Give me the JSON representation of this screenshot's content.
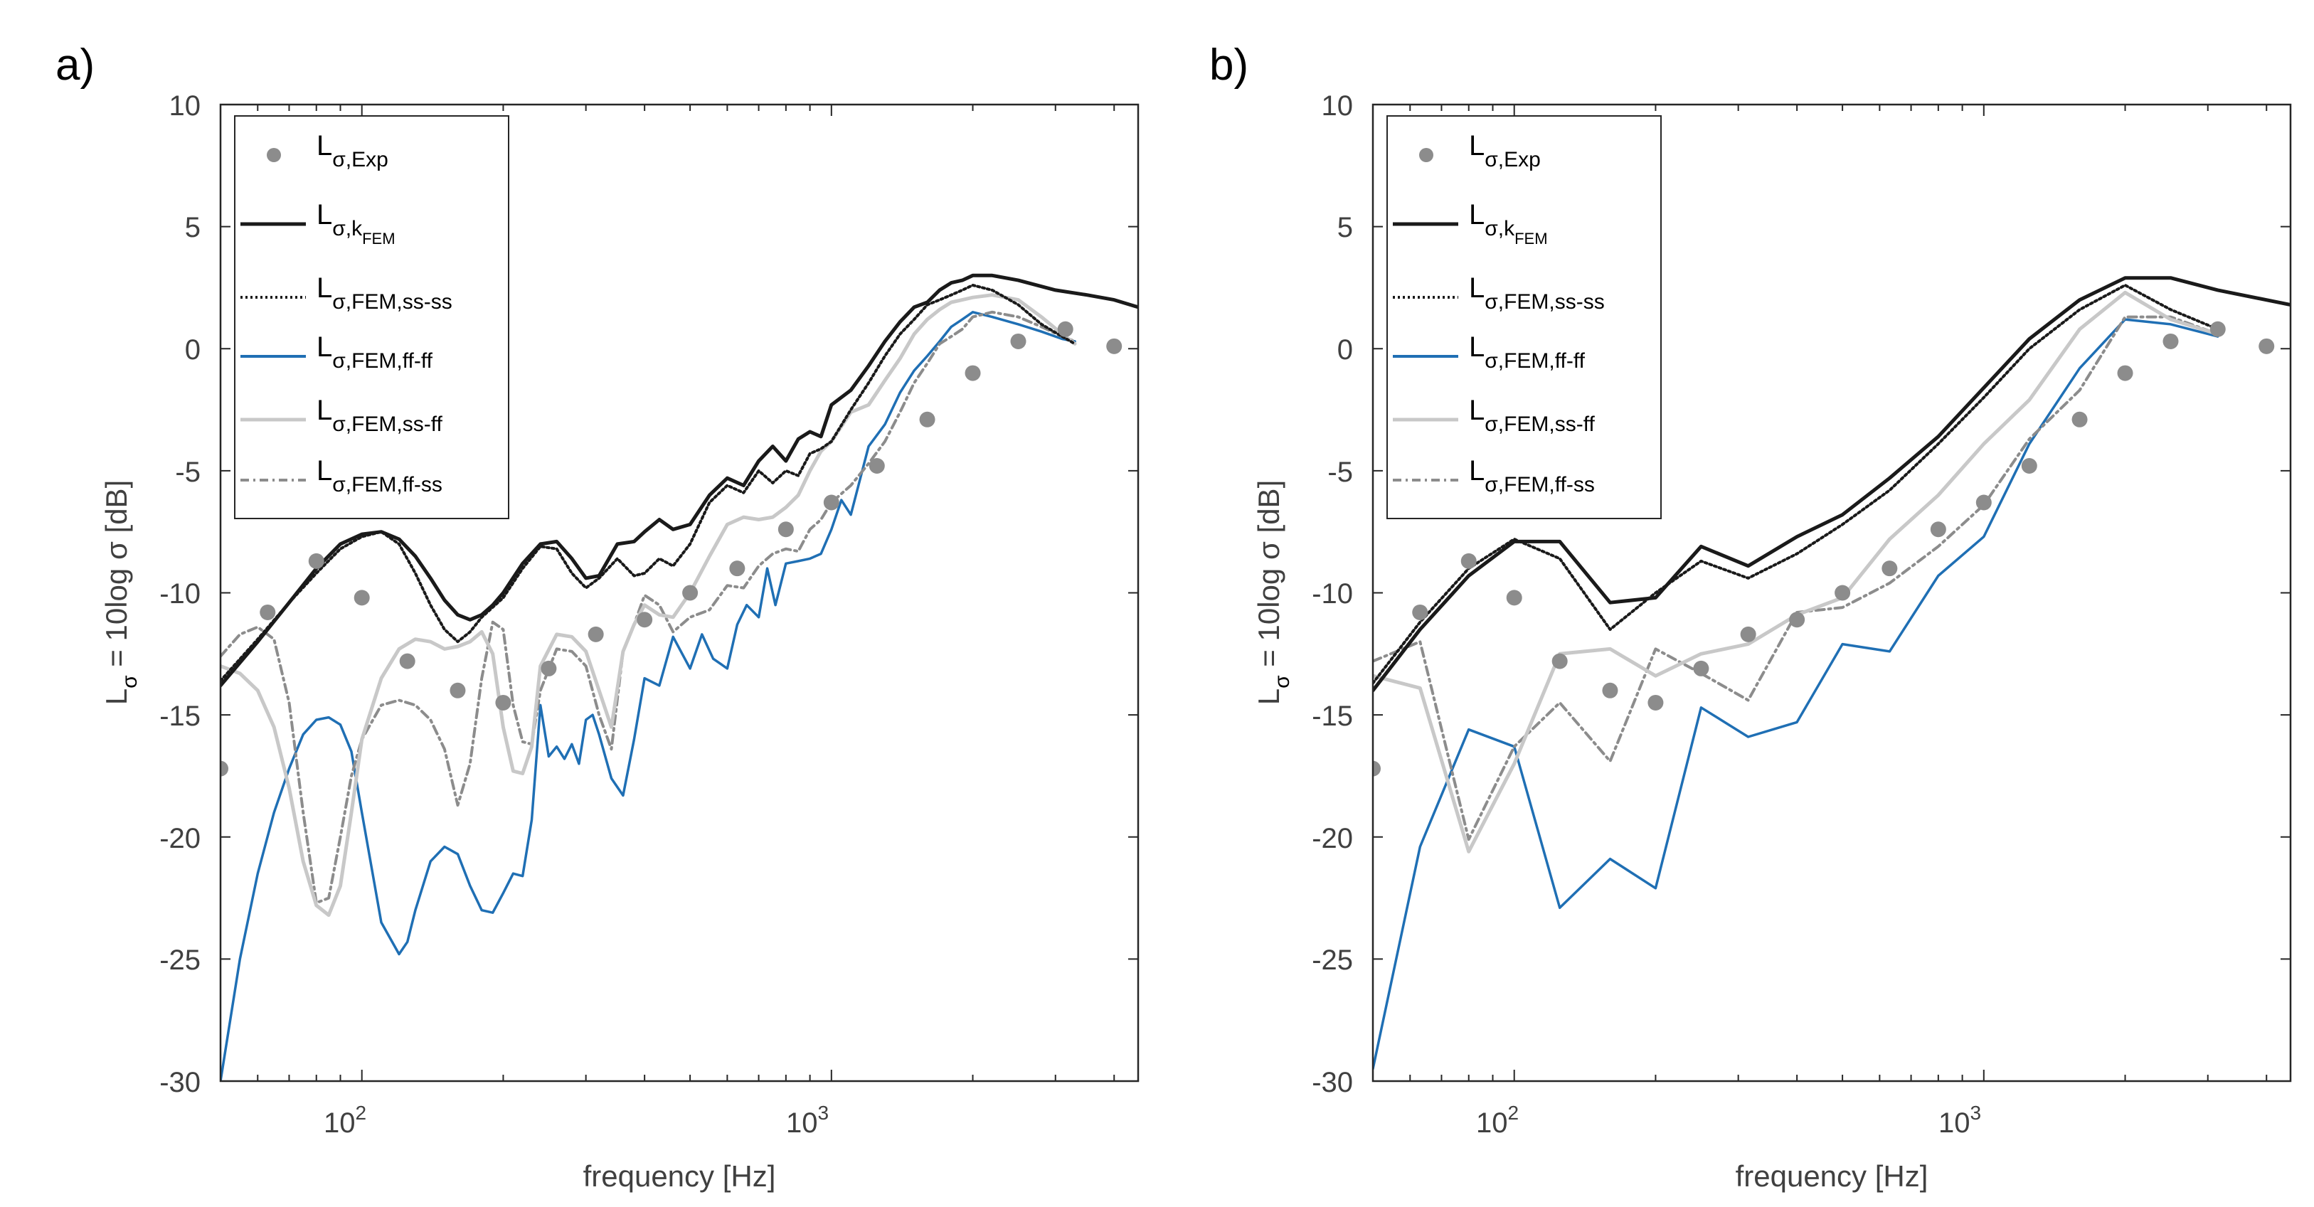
{
  "panels": [
    {
      "label": "a)",
      "xlabel": "frequency [Hz]",
      "ylabel": {
        "main": "L",
        "sub": "σ",
        "rest": " = 10log σ [dB]"
      },
      "xlim": [
        50,
        4500
      ],
      "ylim": [
        -30,
        10
      ],
      "xscale": "log",
      "xticks": [
        {
          "base": "10",
          "exp": "2"
        },
        {
          "base": "10",
          "exp": "3"
        }
      ],
      "yticks": [
        "10",
        "5",
        "0",
        "-5",
        "-10",
        "-15",
        "-20",
        "-25",
        "-30"
      ],
      "legend": [
        {
          "main": "L",
          "sub": "σ,Exp",
          "subsub": ""
        },
        {
          "main": "L",
          "sub": "σ,k",
          "subsub": "FEM"
        },
        {
          "main": "L",
          "sub": "σ,FEM,ss-ss",
          "subsub": ""
        },
        {
          "main": "L",
          "sub": "σ,FEM,ff-ff",
          "subsub": ""
        },
        {
          "main": "L",
          "sub": "σ,FEM,ss-ff",
          "subsub": ""
        },
        {
          "main": "L",
          "sub": "σ,FEM,ff-ss",
          "subsub": ""
        }
      ]
    },
    {
      "label": "b)",
      "xlabel": "frequency [Hz]",
      "ylabel": {
        "main": "L",
        "sub": "σ",
        "rest": " = 10log σ [dB]"
      },
      "xlim": [
        50,
        4500
      ],
      "ylim": [
        -30,
        10
      ],
      "xscale": "log",
      "xticks": [
        {
          "base": "10",
          "exp": "2"
        },
        {
          "base": "10",
          "exp": "3"
        }
      ],
      "yticks": [
        "10",
        "5",
        "0",
        "-5",
        "-10",
        "-15",
        "-20",
        "-25",
        "-30"
      ],
      "legend": [
        {
          "main": "L",
          "sub": "σ,Exp",
          "subsub": ""
        },
        {
          "main": "L",
          "sub": "σ,k",
          "subsub": "FEM"
        },
        {
          "main": "L",
          "sub": "σ,FEM,ss-ss",
          "subsub": ""
        },
        {
          "main": "L",
          "sub": "σ,FEM,ff-ff",
          "subsub": ""
        },
        {
          "main": "L",
          "sub": "σ,FEM,ss-ff",
          "subsub": ""
        },
        {
          "main": "L",
          "sub": "σ,FEM,ff-ss",
          "subsub": ""
        }
      ]
    }
  ],
  "colors": {
    "exp": "#8c8c8c",
    "k_fem": "#1a1a1a",
    "ss_ss": "#1a1a1a",
    "ff_ff": "#1f6fb4",
    "ss_ff": "#c8c8c8",
    "ff_ss": "#8c8c8c"
  },
  "chart_data": [
    {
      "type": "line",
      "series": [
        {
          "key": "exp",
          "style": "markers",
          "x": [
            50,
            63,
            80,
            100,
            125,
            160,
            200,
            250,
            315,
            400,
            500,
            630,
            800,
            1000,
            1250,
            1600,
            2000,
            2500,
            3150,
            4000,
            5000
          ],
          "y": [
            -17.2,
            -10.8,
            -8.7,
            -10.2,
            -12.8,
            -14.0,
            -14.5,
            -13.1,
            -11.7,
            -11.1,
            -10.0,
            -9.0,
            -7.4,
            -6.3,
            -4.8,
            -2.9,
            -1.0,
            0.3,
            0.8,
            0.1,
            0.3
          ]
        },
        {
          "key": "k_fem",
          "style": "solid",
          "x": [
            50,
            60,
            70,
            80,
            90,
            100,
            110,
            120,
            130,
            140,
            150,
            160,
            170,
            180,
            190,
            200,
            220,
            240,
            260,
            280,
            300,
            320,
            350,
            380,
            400,
            430,
            460,
            500,
            550,
            600,
            650,
            700,
            750,
            800,
            850,
            900,
            950,
            1000,
            1100,
            1200,
            1300,
            1400,
            1500,
            1600,
            1700,
            1800,
            1900,
            2000,
            2200,
            2500,
            3000,
            3500,
            4000,
            4500
          ],
          "y": [
            -13.8,
            -12.0,
            -10.4,
            -9.0,
            -8.0,
            -7.6,
            -7.5,
            -7.8,
            -8.5,
            -9.4,
            -10.3,
            -10.9,
            -11.1,
            -10.9,
            -10.5,
            -10.0,
            -8.8,
            -8.0,
            -7.9,
            -8.6,
            -9.4,
            -9.3,
            -8.0,
            -7.9,
            -7.5,
            -7.0,
            -7.4,
            -7.2,
            -6.0,
            -5.3,
            -5.6,
            -4.6,
            -4.0,
            -4.6,
            -3.7,
            -3.4,
            -3.6,
            -2.3,
            -1.7,
            -0.7,
            0.3,
            1.1,
            1.7,
            1.9,
            2.4,
            2.7,
            2.8,
            3.0,
            3.0,
            2.8,
            2.4,
            2.2,
            2.0,
            1.7
          ]
        },
        {
          "key": "ss_ss",
          "style": "dotted",
          "x": [
            50,
            60,
            70,
            80,
            90,
            100,
            110,
            120,
            130,
            140,
            150,
            160,
            170,
            180,
            200,
            220,
            240,
            260,
            280,
            300,
            320,
            350,
            380,
            400,
            430,
            460,
            500,
            550,
            600,
            650,
            700,
            750,
            800,
            850,
            900,
            950,
            1000,
            1100,
            1200,
            1300,
            1400,
            1500,
            1600,
            1700,
            1800,
            1900,
            2000,
            2200,
            2500,
            2800,
            3100,
            3300
          ],
          "y": [
            -13.6,
            -11.9,
            -10.4,
            -9.2,
            -8.2,
            -7.7,
            -7.5,
            -8.0,
            -9.2,
            -10.5,
            -11.5,
            -12.0,
            -11.6,
            -11.0,
            -10.2,
            -9.0,
            -8.1,
            -8.2,
            -9.2,
            -9.8,
            -9.4,
            -8.6,
            -9.3,
            -9.2,
            -8.6,
            -8.9,
            -8.0,
            -6.3,
            -5.6,
            -5.9,
            -5.0,
            -5.5,
            -5.0,
            -5.2,
            -4.3,
            -4.1,
            -3.8,
            -2.5,
            -1.4,
            -0.3,
            0.6,
            1.2,
            1.8,
            2.0,
            2.2,
            2.4,
            2.6,
            2.4,
            1.8,
            1.0,
            0.5,
            0.2
          ]
        },
        {
          "key": "ff_ff",
          "style": "solid",
          "x": [
            50,
            55,
            60,
            65,
            70,
            75,
            80,
            85,
            90,
            95,
            100,
            110,
            120,
            125,
            130,
            140,
            150,
            160,
            170,
            180,
            190,
            200,
            210,
            220,
            230,
            240,
            250,
            260,
            270,
            280,
            290,
            300,
            310,
            320,
            340,
            360,
            380,
            400,
            430,
            460,
            500,
            530,
            560,
            600,
            630,
            660,
            700,
            730,
            760,
            800,
            850,
            900,
            950,
            1000,
            1050,
            1100,
            1200,
            1300,
            1400,
            1500,
            1600,
            1700,
            1800,
            1900,
            2000,
            2200,
            2500,
            2800,
            3100,
            3300
          ],
          "y": [
            -30.0,
            -25.0,
            -21.5,
            -19.0,
            -17.2,
            -15.8,
            -15.2,
            -15.1,
            -15.4,
            -16.5,
            -19.0,
            -23.5,
            -24.8,
            -24.3,
            -23.0,
            -21.0,
            -20.4,
            -20.7,
            -22.0,
            -23.0,
            -23.1,
            -22.3,
            -21.5,
            -21.6,
            -19.3,
            -14.6,
            -16.7,
            -16.3,
            -16.8,
            -16.2,
            -17.0,
            -15.2,
            -15.0,
            -15.8,
            -17.6,
            -18.3,
            -16.0,
            -13.5,
            -13.8,
            -11.8,
            -13.1,
            -11.7,
            -12.7,
            -13.1,
            -11.3,
            -10.5,
            -11.0,
            -9.0,
            -10.5,
            -8.8,
            -8.7,
            -8.6,
            -8.4,
            -7.4,
            -6.2,
            -6.8,
            -4.0,
            -3.1,
            -1.8,
            -0.9,
            -0.3,
            0.3,
            0.9,
            1.2,
            1.5,
            1.3,
            1.0,
            0.7,
            0.4,
            0.3
          ]
        },
        {
          "key": "ss_ff",
          "style": "solid",
          "x": [
            50,
            55,
            60,
            65,
            70,
            75,
            80,
            85,
            90,
            95,
            100,
            110,
            120,
            130,
            140,
            150,
            160,
            170,
            180,
            190,
            200,
            210,
            220,
            230,
            240,
            260,
            280,
            300,
            320,
            340,
            360,
            380,
            400,
            430,
            460,
            500,
            550,
            600,
            650,
            700,
            750,
            800,
            850,
            900,
            950,
            1000,
            1100,
            1200,
            1300,
            1400,
            1500,
            1600,
            1700,
            1800,
            1900,
            2000,
            2200,
            2500,
            2800,
            3100,
            3300
          ],
          "y": [
            -13.0,
            -13.3,
            -14.0,
            -15.5,
            -18.0,
            -21.0,
            -22.8,
            -23.2,
            -22.0,
            -19.0,
            -16.0,
            -13.5,
            -12.3,
            -11.9,
            -12.0,
            -12.3,
            -12.2,
            -12.0,
            -11.6,
            -12.5,
            -15.5,
            -17.3,
            -17.4,
            -16.3,
            -13.0,
            -11.7,
            -11.8,
            -12.4,
            -14.0,
            -15.5,
            -12.4,
            -11.3,
            -10.5,
            -10.9,
            -11.0,
            -10.0,
            -8.5,
            -7.2,
            -6.9,
            -7.0,
            -6.9,
            -6.5,
            -6.0,
            -5.0,
            -4.2,
            -3.8,
            -2.6,
            -2.3,
            -1.3,
            -0.4,
            0.6,
            1.2,
            1.6,
            1.9,
            2.0,
            2.1,
            2.2,
            2.0,
            1.3,
            0.6,
            0.2
          ]
        },
        {
          "key": "ff_ss",
          "style": "dashdot",
          "x": [
            50,
            55,
            60,
            65,
            70,
            75,
            80,
            85,
            90,
            95,
            100,
            110,
            120,
            130,
            140,
            150,
            160,
            170,
            180,
            190,
            200,
            210,
            220,
            230,
            240,
            260,
            280,
            300,
            320,
            340,
            360,
            380,
            400,
            430,
            460,
            500,
            550,
            600,
            650,
            700,
            750,
            800,
            850,
            900,
            950,
            1000,
            1100,
            1200,
            1300,
            1400,
            1500,
            1600,
            1700,
            1800,
            1900,
            2000,
            2200,
            2500,
            2800,
            3100,
            3300
          ],
          "y": [
            -12.6,
            -11.7,
            -11.4,
            -11.9,
            -14.5,
            -19.0,
            -22.7,
            -22.5,
            -20.0,
            -17.5,
            -16.0,
            -14.6,
            -14.4,
            -14.6,
            -15.2,
            -16.4,
            -18.7,
            -17.0,
            -13.5,
            -11.2,
            -11.5,
            -14.6,
            -16.1,
            -16.2,
            -14.0,
            -12.3,
            -12.4,
            -13.0,
            -15.0,
            -16.4,
            -12.4,
            -11.3,
            -10.1,
            -10.5,
            -11.6,
            -11.0,
            -10.7,
            -9.7,
            -9.8,
            -8.9,
            -8.4,
            -8.2,
            -8.3,
            -7.4,
            -7.0,
            -6.3,
            -5.6,
            -4.7,
            -3.8,
            -2.6,
            -1.4,
            -0.6,
            0.2,
            0.5,
            0.8,
            1.3,
            1.5,
            1.3,
            0.9,
            0.5,
            0.3
          ]
        }
      ]
    },
    {
      "type": "line",
      "series": [
        {
          "key": "exp",
          "style": "markers",
          "x": [
            50,
            63,
            80,
            100,
            125,
            160,
            200,
            250,
            315,
            400,
            500,
            630,
            800,
            1000,
            1250,
            1600,
            2000,
            2500,
            3150,
            4000,
            5000
          ],
          "y": [
            -17.2,
            -10.8,
            -8.7,
            -10.2,
            -12.8,
            -14.0,
            -14.5,
            -13.1,
            -11.7,
            -11.1,
            -10.0,
            -9.0,
            -7.4,
            -6.3,
            -4.8,
            -2.9,
            -1.0,
            0.3,
            0.8,
            0.1,
            0.3
          ]
        },
        {
          "key": "k_fem",
          "style": "solid",
          "x": [
            50,
            63,
            80,
            100,
            125,
            160,
            200,
            250,
            315,
            400,
            500,
            630,
            800,
            1000,
            1250,
            1600,
            2000,
            2500,
            3150,
            4500
          ],
          "y": [
            -14.0,
            -11.5,
            -9.3,
            -7.9,
            -7.9,
            -10.4,
            -10.2,
            -8.1,
            -8.9,
            -7.7,
            -6.8,
            -5.3,
            -3.6,
            -1.6,
            0.4,
            2.0,
            2.9,
            2.9,
            2.4,
            1.8
          ]
        },
        {
          "key": "ss_ss",
          "style": "dotted",
          "x": [
            50,
            63,
            80,
            100,
            125,
            160,
            200,
            250,
            315,
            400,
            500,
            630,
            800,
            1000,
            1250,
            1600,
            2000,
            2500,
            3150
          ],
          "y": [
            -13.7,
            -11.2,
            -9.0,
            -7.8,
            -8.6,
            -11.5,
            -10.0,
            -8.7,
            -9.4,
            -8.4,
            -7.2,
            -5.8,
            -3.9,
            -2.0,
            0.0,
            1.6,
            2.6,
            1.6,
            0.8
          ]
        },
        {
          "key": "ff_ff",
          "style": "solid",
          "x": [
            50,
            63,
            80,
            100,
            125,
            160,
            200,
            250,
            315,
            400,
            500,
            630,
            800,
            1000,
            1250,
            1600,
            2000,
            2500,
            3150
          ],
          "y": [
            -29.5,
            -20.4,
            -15.6,
            -16.3,
            -22.9,
            -20.9,
            -22.1,
            -14.7,
            -15.9,
            -15.3,
            -12.1,
            -12.4,
            -9.3,
            -7.7,
            -3.9,
            -0.8,
            1.2,
            1.0,
            0.5
          ]
        },
        {
          "key": "ss_ff",
          "style": "solid",
          "x": [
            50,
            63,
            80,
            100,
            125,
            160,
            200,
            250,
            315,
            400,
            500,
            630,
            800,
            1000,
            1250,
            1600,
            2000,
            2500,
            3150
          ],
          "y": [
            -13.4,
            -13.9,
            -20.6,
            -17.0,
            -12.5,
            -12.3,
            -13.4,
            -12.5,
            -12.1,
            -10.9,
            -10.2,
            -7.8,
            -6.0,
            -3.9,
            -2.1,
            0.8,
            2.3,
            1.2,
            0.6
          ]
        },
        {
          "key": "ff_ss",
          "style": "dashdot",
          "x": [
            50,
            63,
            80,
            100,
            125,
            160,
            200,
            250,
            315,
            400,
            500,
            630,
            800,
            1000,
            1250,
            1600,
            2000,
            2500,
            3150
          ],
          "y": [
            -12.8,
            -12.0,
            -20.1,
            -16.3,
            -14.5,
            -16.9,
            -12.3,
            -13.3,
            -14.4,
            -10.8,
            -10.6,
            -9.6,
            -8.1,
            -6.4,
            -3.7,
            -1.7,
            1.3,
            1.3,
            0.6
          ]
        }
      ]
    }
  ]
}
